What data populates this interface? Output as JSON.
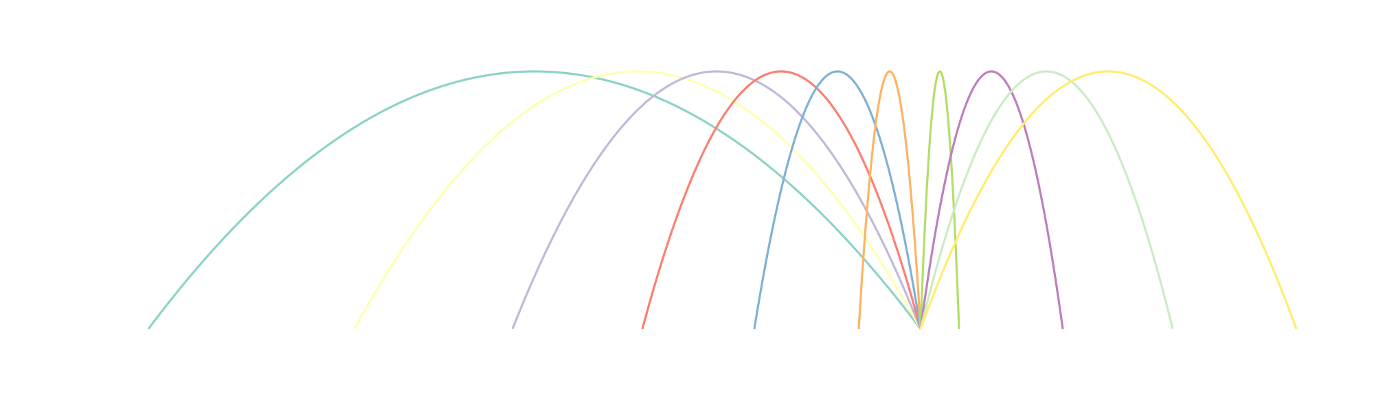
{
  "chart_data": {
    "type": "line",
    "title": "",
    "xlabel": "",
    "ylabel": "",
    "xlim": [
      0,
      2000
    ],
    "ylim": [
      0,
      375
    ],
    "grid": false,
    "axes_visible": false,
    "legend": "none",
    "description": "",
    "series": [
      {
        "left": 216,
        "right": 1340,
        "apex_x": 778,
        "height": 375,
        "color": "#8dd3c7"
      },
      {
        "left": 516,
        "right": 1340,
        "apex_x": 928,
        "height": 375,
        "color": "#ffffb3"
      },
      {
        "left": 746,
        "right": 1340,
        "apex_x": 1043,
        "height": 375,
        "color": "#bebada"
      },
      {
        "left": 935,
        "right": 1340,
        "apex_x": 1137,
        "height": 375,
        "color": "#fb8072"
      },
      {
        "left": 1098,
        "right": 1340,
        "apex_x": 1219,
        "height": 375,
        "color": "#80b1d3"
      },
      {
        "left": 1250,
        "right": 1340,
        "apex_x": 1295,
        "height": 375,
        "color": "#fdb462"
      },
      {
        "left": 1340,
        "right": 1396,
        "apex_x": 1368,
        "height": 375,
        "color": "#b3de69"
      },
      {
        "left": 1340,
        "right": 1547,
        "apex_x": 1443,
        "height": 375,
        "color": "#bc80bd"
      },
      {
        "left": 1340,
        "right": 1707,
        "apex_x": 1523,
        "height": 375,
        "color": "#ccebc5"
      },
      {
        "left": 1340,
        "right": 1887,
        "apex_x": 1613,
        "height": 375,
        "color": "#ffed6f"
      }
    ]
  }
}
